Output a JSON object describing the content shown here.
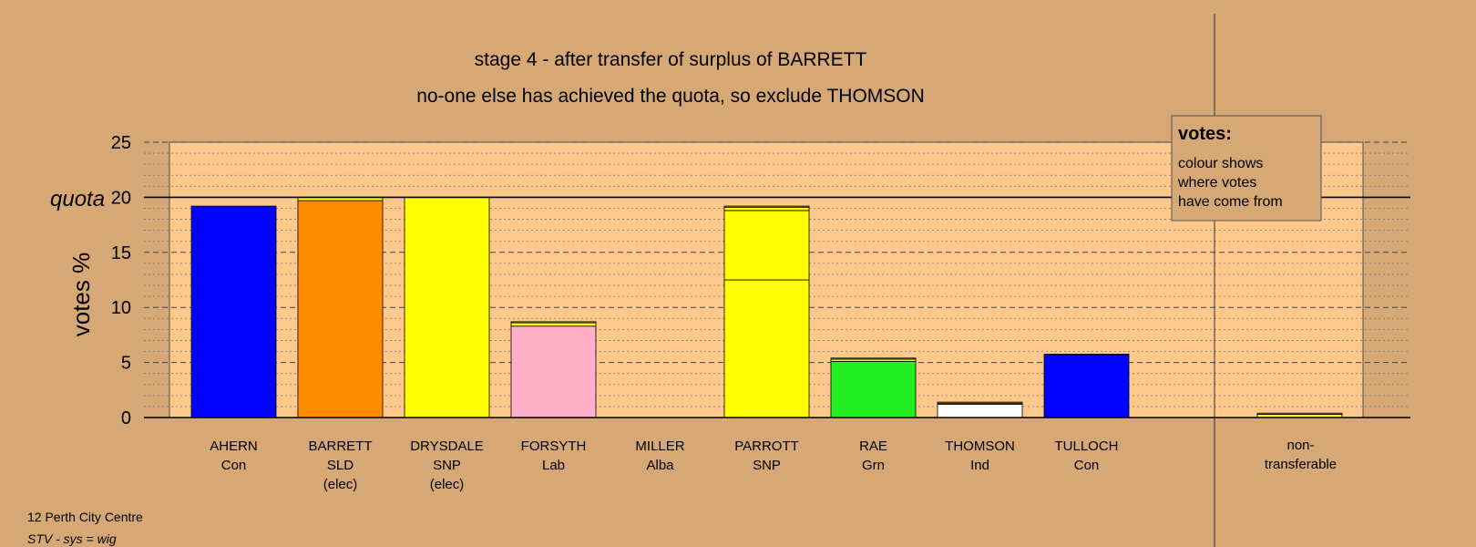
{
  "chart_data": {
    "type": "bar",
    "stacked": true,
    "title": "stage 4 - after transfer of surplus of BARRETT",
    "subtitle": "no-one else has achieved the quota, so exclude THOMSON",
    "ylabel": "votes %",
    "quota_label": "quota",
    "quota_value": 20,
    "ylim": [
      0,
      25
    ],
    "yticks": [
      0,
      5,
      10,
      15,
      20,
      25
    ],
    "grid": true,
    "categories": [
      {
        "name": "AHERN",
        "party": "Con",
        "note": ""
      },
      {
        "name": "BARRETT",
        "party": "SLD",
        "note": "(elec)"
      },
      {
        "name": "DRYSDALE",
        "party": "SNP",
        "note": "(elec)"
      },
      {
        "name": "FORSYTH",
        "party": "Lab",
        "note": ""
      },
      {
        "name": "MILLER",
        "party": "Alba",
        "note": ""
      },
      {
        "name": "PARROTT",
        "party": "SNP",
        "note": ""
      },
      {
        "name": "RAE",
        "party": "Grn",
        "note": ""
      },
      {
        "name": "THOMSON",
        "party": "Ind",
        "note": ""
      },
      {
        "name": "TULLOCH",
        "party": "Con",
        "note": ""
      }
    ],
    "bars": [
      {
        "segments": [
          {
            "value": 19.2,
            "color": "#0000FF"
          }
        ]
      },
      {
        "segments": [
          {
            "value": 19.7,
            "color": "#FF8C00"
          },
          {
            "value": 0.3,
            "color": "#FFFF00"
          }
        ]
      },
      {
        "segments": [
          {
            "value": 20.0,
            "color": "#FFFF00"
          }
        ]
      },
      {
        "segments": [
          {
            "value": 8.3,
            "color": "#FFB0C8"
          },
          {
            "value": 0.3,
            "color": "#FFFF00"
          },
          {
            "value": 0.1,
            "color": "#FF8C00"
          }
        ]
      },
      {
        "segments": []
      },
      {
        "segments": [
          {
            "value": 12.5,
            "color": "#FFFF00"
          },
          {
            "value": 6.3,
            "color": "#FFFF00"
          },
          {
            "value": 0.3,
            "color": "#FFFF00"
          },
          {
            "value": 0.1,
            "color": "#FF8C00"
          }
        ]
      },
      {
        "segments": [
          {
            "value": 5.1,
            "color": "#22EE22"
          },
          {
            "value": 0.2,
            "color": "#FFFF00"
          },
          {
            "value": 0.1,
            "color": "#FF8C00"
          }
        ]
      },
      {
        "segments": [
          {
            "value": 1.2,
            "color": "#FFFFFF"
          },
          {
            "value": 0.1,
            "color": "#FFFF00"
          },
          {
            "value": 0.1,
            "color": "#FF8C00"
          }
        ]
      },
      {
        "segments": [
          {
            "value": 5.7,
            "color": "#0000FF"
          },
          {
            "value": 0.05,
            "color": "#FF8C00"
          }
        ]
      }
    ],
    "nontransferable": {
      "label": [
        "non-",
        "transferable"
      ],
      "segments": [
        {
          "value": 0.3,
          "color": "#FFFF00"
        },
        {
          "value": 0.1,
          "color": "#FF8C00"
        }
      ]
    },
    "legend": {
      "title": "votes:",
      "lines": [
        "colour shows",
        "where votes",
        "have come from"
      ]
    }
  },
  "colors": {
    "background": "#D5A875",
    "plot_area": "#FFC88C"
  },
  "footer": {
    "line1": "12 Perth City Centre",
    "line2": "STV - sys = wig"
  }
}
